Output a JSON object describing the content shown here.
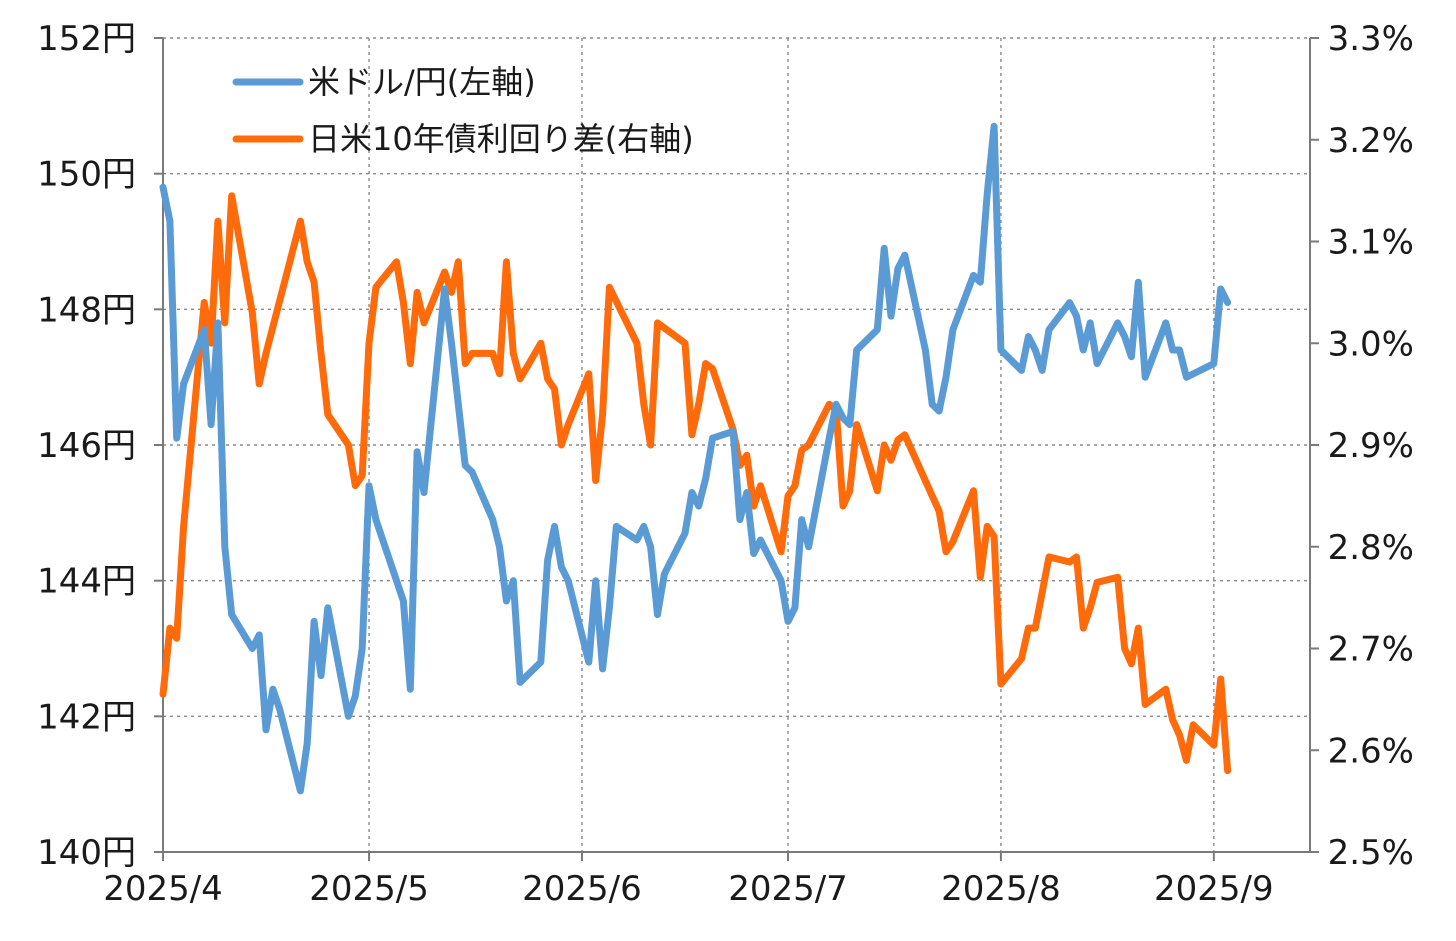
{
  "chart_data": {
    "type": "line",
    "x_axis": {
      "type": "date",
      "ticks": [
        "2025/4/1",
        "2025/5/1",
        "2025/6/1",
        "2025/7/1",
        "2025/8/1",
        "2025/9/1"
      ],
      "tick_labels": [
        "2025/4",
        "2025/5",
        "2025/6",
        "2025/7",
        "2025/8",
        "2025/9"
      ],
      "range": [
        "2025/4/1",
        "2025/9/15"
      ],
      "grid": true
    },
    "y_left": {
      "ticks": [
        140,
        142,
        144,
        146,
        148,
        150,
        152
      ],
      "tick_labels": [
        "140円",
        "142円",
        "144円",
        "146円",
        "148円",
        "150円",
        "152円"
      ],
      "range": [
        140,
        152
      ],
      "grid": true
    },
    "y_right": {
      "ticks": [
        2.5,
        2.6,
        2.7,
        2.8,
        2.9,
        3.0,
        3.1,
        3.2,
        3.3
      ],
      "tick_labels": [
        "2.5%",
        "2.6%",
        "2.7%",
        "2.8%",
        "2.9%",
        "3.0%",
        "3.1%",
        "3.2%",
        "3.3%"
      ],
      "range": [
        2.5,
        3.3
      ]
    },
    "legend": {
      "placement": "top-left"
    },
    "series": [
      {
        "name": "米ドル/円(左軸)",
        "axis": "left",
        "color": "#5b9bd5",
        "points": [
          [
            "2025/4/1",
            149.8
          ],
          [
            "2025/4/2",
            149.3
          ],
          [
            "2025/4/3",
            146.1
          ],
          [
            "2025/4/4",
            146.9
          ],
          [
            "2025/4/7",
            147.7
          ],
          [
            "2025/4/8",
            146.3
          ],
          [
            "2025/4/9",
            147.8
          ],
          [
            "2025/4/10",
            144.5
          ],
          [
            "2025/4/11",
            143.5
          ],
          [
            "2025/4/14",
            143.0
          ],
          [
            "2025/4/15",
            143.2
          ],
          [
            "2025/4/16",
            141.8
          ],
          [
            "2025/4/17",
            142.4
          ],
          [
            "2025/4/18",
            142.1
          ],
          [
            "2025/4/21",
            140.9
          ],
          [
            "2025/4/22",
            141.6
          ],
          [
            "2025/4/23",
            143.4
          ],
          [
            "2025/4/24",
            142.6
          ],
          [
            "2025/4/25",
            143.6
          ],
          [
            "2025/4/28",
            142.0
          ],
          [
            "2025/4/29",
            142.3
          ],
          [
            "2025/4/30",
            143.0
          ],
          [
            "2025/5/1",
            145.4
          ],
          [
            "2025/5/2",
            144.9
          ],
          [
            "2025/5/6",
            143.7
          ],
          [
            "2025/5/7",
            142.4
          ],
          [
            "2025/5/8",
            145.9
          ],
          [
            "2025/5/9",
            145.3
          ],
          [
            "2025/5/12",
            148.3
          ],
          [
            "2025/5/13",
            147.5
          ],
          [
            "2025/5/14",
            146.6
          ],
          [
            "2025/5/15",
            145.7
          ],
          [
            "2025/5/16",
            145.6
          ],
          [
            "2025/5/19",
            144.9
          ],
          [
            "2025/5/20",
            144.5
          ],
          [
            "2025/5/21",
            143.7
          ],
          [
            "2025/5/22",
            144.0
          ],
          [
            "2025/5/23",
            142.5
          ],
          [
            "2025/5/26",
            142.8
          ],
          [
            "2025/5/27",
            144.3
          ],
          [
            "2025/5/28",
            144.8
          ],
          [
            "2025/5/29",
            144.2
          ],
          [
            "2025/5/30",
            144.0
          ],
          [
            "2025/6/2",
            142.8
          ],
          [
            "2025/6/3",
            144.0
          ],
          [
            "2025/6/4",
            142.7
          ],
          [
            "2025/6/5",
            143.6
          ],
          [
            "2025/6/6",
            144.8
          ],
          [
            "2025/6/9",
            144.6
          ],
          [
            "2025/6/10",
            144.8
          ],
          [
            "2025/6/11",
            144.5
          ],
          [
            "2025/6/12",
            143.5
          ],
          [
            "2025/6/13",
            144.1
          ],
          [
            "2025/6/16",
            144.7
          ],
          [
            "2025/6/17",
            145.3
          ],
          [
            "2025/6/18",
            145.1
          ],
          [
            "2025/6/19",
            145.5
          ],
          [
            "2025/6/20",
            146.1
          ],
          [
            "2025/6/23",
            146.2
          ],
          [
            "2025/6/24",
            144.9
          ],
          [
            "2025/6/25",
            145.3
          ],
          [
            "2025/6/26",
            144.4
          ],
          [
            "2025/6/27",
            144.6
          ],
          [
            "2025/6/30",
            144.0
          ],
          [
            "2025/7/1",
            143.4
          ],
          [
            "2025/7/2",
            143.6
          ],
          [
            "2025/7/3",
            144.9
          ],
          [
            "2025/7/4",
            144.5
          ],
          [
            "2025/7/7",
            146.1
          ],
          [
            "2025/7/8",
            146.6
          ],
          [
            "2025/7/9",
            146.4
          ],
          [
            "2025/7/10",
            146.3
          ],
          [
            "2025/7/11",
            147.4
          ],
          [
            "2025/7/14",
            147.7
          ],
          [
            "2025/7/15",
            148.9
          ],
          [
            "2025/7/16",
            147.9
          ],
          [
            "2025/7/17",
            148.6
          ],
          [
            "2025/7/18",
            148.8
          ],
          [
            "2025/7/21",
            147.4
          ],
          [
            "2025/7/22",
            146.6
          ],
          [
            "2025/7/23",
            146.5
          ],
          [
            "2025/7/24",
            147.0
          ],
          [
            "2025/7/25",
            147.7
          ],
          [
            "2025/7/28",
            148.5
          ],
          [
            "2025/7/29",
            148.4
          ],
          [
            "2025/7/30",
            149.7
          ],
          [
            "2025/7/31",
            150.7
          ],
          [
            "2025/8/1",
            147.4
          ],
          [
            "2025/8/4",
            147.1
          ],
          [
            "2025/8/5",
            147.6
          ],
          [
            "2025/8/6",
            147.4
          ],
          [
            "2025/8/7",
            147.1
          ],
          [
            "2025/8/8",
            147.7
          ],
          [
            "2025/8/11",
            148.1
          ],
          [
            "2025/8/12",
            147.9
          ],
          [
            "2025/8/13",
            147.4
          ],
          [
            "2025/8/14",
            147.8
          ],
          [
            "2025/8/15",
            147.2
          ],
          [
            "2025/8/18",
            147.8
          ],
          [
            "2025/8/19",
            147.6
          ],
          [
            "2025/8/20",
            147.3
          ],
          [
            "2025/8/21",
            148.4
          ],
          [
            "2025/8/22",
            147.0
          ],
          [
            "2025/8/25",
            147.8
          ],
          [
            "2025/8/26",
            147.4
          ],
          [
            "2025/8/27",
            147.4
          ],
          [
            "2025/8/28",
            147.0
          ],
          [
            "2025/9/1",
            147.2
          ],
          [
            "2025/9/2",
            148.3
          ],
          [
            "2025/9/3",
            148.1
          ]
        ]
      },
      {
        "name": "日米10年債利回り差(右軸)",
        "axis": "right",
        "color": "#ff6a0a",
        "points": [
          [
            "2025/4/1",
            2.655
          ],
          [
            "2025/4/2",
            2.72
          ],
          [
            "2025/4/3",
            2.71
          ],
          [
            "2025/4/4",
            2.82
          ],
          [
            "2025/4/7",
            3.04
          ],
          [
            "2025/4/8",
            3.0
          ],
          [
            "2025/4/9",
            3.12
          ],
          [
            "2025/4/10",
            3.02
          ],
          [
            "2025/4/11",
            3.145
          ],
          [
            "2025/4/14",
            3.03
          ],
          [
            "2025/4/15",
            2.96
          ],
          [
            "2025/4/16",
            2.99
          ],
          [
            "2025/4/21",
            3.12
          ],
          [
            "2025/4/22",
            3.08
          ],
          [
            "2025/4/23",
            3.06
          ],
          [
            "2025/4/24",
            2.99
          ],
          [
            "2025/4/25",
            2.93
          ],
          [
            "2025/4/28",
            2.9
          ],
          [
            "2025/4/29",
            2.86
          ],
          [
            "2025/4/30",
            2.87
          ],
          [
            "2025/5/1",
            3.0
          ],
          [
            "2025/5/2",
            3.055
          ],
          [
            "2025/5/5",
            3.08
          ],
          [
            "2025/5/6",
            3.04
          ],
          [
            "2025/5/7",
            2.98
          ],
          [
            "2025/5/8",
            3.05
          ],
          [
            "2025/5/9",
            3.02
          ],
          [
            "2025/5/12",
            3.07
          ],
          [
            "2025/5/13",
            3.05
          ],
          [
            "2025/5/14",
            3.08
          ],
          [
            "2025/5/15",
            2.98
          ],
          [
            "2025/5/16",
            2.99
          ],
          [
            "2025/5/19",
            2.99
          ],
          [
            "2025/5/20",
            2.97
          ],
          [
            "2025/5/21",
            3.08
          ],
          [
            "2025/5/22",
            2.99
          ],
          [
            "2025/5/23",
            2.965
          ],
          [
            "2025/5/26",
            3.0
          ],
          [
            "2025/5/27",
            2.965
          ],
          [
            "2025/5/28",
            2.955
          ],
          [
            "2025/5/29",
            2.9
          ],
          [
            "2025/5/30",
            2.92
          ],
          [
            "2025/6/2",
            2.97
          ],
          [
            "2025/6/3",
            2.865
          ],
          [
            "2025/6/4",
            2.93
          ],
          [
            "2025/6/5",
            3.055
          ],
          [
            "2025/6/9",
            3.0
          ],
          [
            "2025/6/10",
            2.94
          ],
          [
            "2025/6/11",
            2.9
          ],
          [
            "2025/6/12",
            3.02
          ],
          [
            "2025/6/13",
            3.015
          ],
          [
            "2025/6/16",
            3.0
          ],
          [
            "2025/6/17",
            2.91
          ],
          [
            "2025/6/18",
            2.94
          ],
          [
            "2025/6/19",
            2.98
          ],
          [
            "2025/6/20",
            2.975
          ],
          [
            "2025/6/23",
            2.915
          ],
          [
            "2025/6/24",
            2.88
          ],
          [
            "2025/6/25",
            2.89
          ],
          [
            "2025/6/26",
            2.84
          ],
          [
            "2025/6/27",
            2.86
          ],
          [
            "2025/6/30",
            2.795
          ],
          [
            "2025/7/1",
            2.85
          ],
          [
            "2025/7/2",
            2.86
          ],
          [
            "2025/7/3",
            2.895
          ],
          [
            "2025/7/4",
            2.9
          ],
          [
            "2025/7/7",
            2.94
          ],
          [
            "2025/7/8",
            2.935
          ],
          [
            "2025/7/9",
            2.84
          ],
          [
            "2025/7/10",
            2.855
          ],
          [
            "2025/7/11",
            2.92
          ],
          [
            "2025/7/14",
            2.855
          ],
          [
            "2025/7/15",
            2.9
          ],
          [
            "2025/7/16",
            2.885
          ],
          [
            "2025/7/17",
            2.905
          ],
          [
            "2025/7/18",
            2.91
          ],
          [
            "2025/7/22",
            2.85
          ],
          [
            "2025/7/23",
            2.835
          ],
          [
            "2025/7/24",
            2.795
          ],
          [
            "2025/7/25",
            2.805
          ],
          [
            "2025/7/28",
            2.855
          ],
          [
            "2025/7/29",
            2.77
          ],
          [
            "2025/7/30",
            2.82
          ],
          [
            "2025/7/31",
            2.81
          ],
          [
            "2025/8/1",
            2.665
          ],
          [
            "2025/8/4",
            2.69
          ],
          [
            "2025/8/5",
            2.72
          ],
          [
            "2025/8/6",
            2.72
          ],
          [
            "2025/8/8",
            2.79
          ],
          [
            "2025/8/11",
            2.785
          ],
          [
            "2025/8/12",
            2.79
          ],
          [
            "2025/8/13",
            2.72
          ],
          [
            "2025/8/14",
            2.74
          ],
          [
            "2025/8/15",
            2.765
          ],
          [
            "2025/8/18",
            2.77
          ],
          [
            "2025/8/19",
            2.7
          ],
          [
            "2025/8/20",
            2.685
          ],
          [
            "2025/8/21",
            2.72
          ],
          [
            "2025/8/22",
            2.645
          ],
          [
            "2025/8/25",
            2.66
          ],
          [
            "2025/8/26",
            2.63
          ],
          [
            "2025/8/27",
            2.615
          ],
          [
            "2025/8/28",
            2.59
          ],
          [
            "2025/8/29",
            2.625
          ],
          [
            "2025/9/1",
            2.605
          ],
          [
            "2025/9/2",
            2.67
          ],
          [
            "2025/9/3",
            2.58
          ]
        ]
      }
    ]
  }
}
